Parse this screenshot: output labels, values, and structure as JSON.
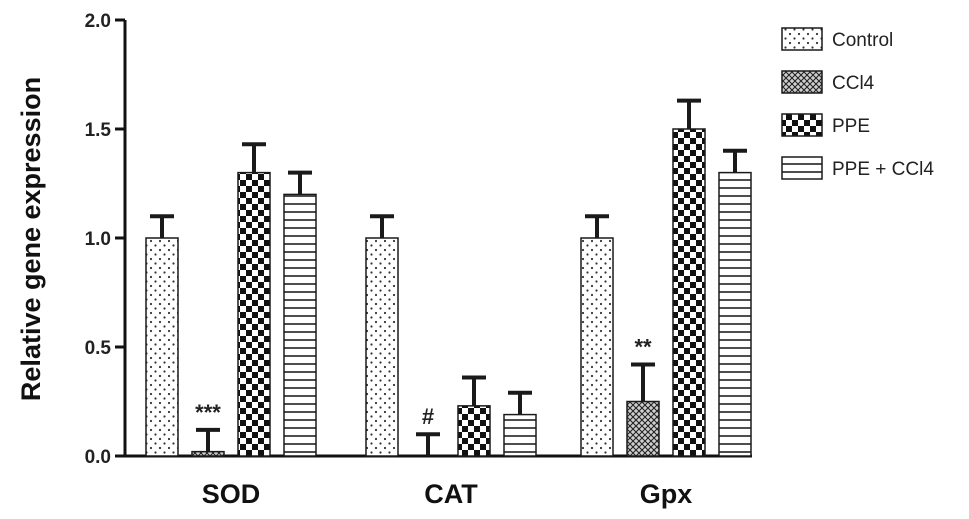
{
  "chart_data": {
    "type": "bar",
    "title": "",
    "xlabel": "",
    "ylabel": "Relative gene expression",
    "ylim": [
      0,
      2.0
    ],
    "yticks": [
      "0.0",
      "0.5",
      "1.0",
      "1.5",
      "2.0"
    ],
    "categories": [
      "SOD",
      "CAT",
      "Gpx"
    ],
    "series": [
      {
        "name": "Control",
        "values": [
          1.0,
          1.0,
          1.0
        ],
        "errors": [
          0.1,
          0.1,
          0.1
        ],
        "pattern": "dots"
      },
      {
        "name": "CCl4",
        "values": [
          0.02,
          0.0,
          0.25
        ],
        "errors": [
          0.1,
          0.1,
          0.17
        ],
        "pattern": "crosshatch"
      },
      {
        "name": "PPE",
        "values": [
          1.3,
          0.23,
          1.5
        ],
        "errors": [
          0.13,
          0.13,
          0.13
        ],
        "pattern": "checker"
      },
      {
        "name": "PPE + CCl4",
        "values": [
          1.2,
          0.19,
          1.3
        ],
        "errors": [
          0.1,
          0.1,
          0.1
        ],
        "pattern": "hlines"
      }
    ],
    "legend": [
      "Control",
      "CCl4",
      "PPE",
      "PPE + CCl4"
    ],
    "legend_position": "top-right",
    "grid": false,
    "annotations": [
      {
        "text": "***",
        "category": "SOD",
        "series": "CCl4"
      },
      {
        "text": "#",
        "category": "CAT",
        "series": "CCl4"
      },
      {
        "text": "**",
        "category": "Gpx",
        "series": "CCl4"
      }
    ]
  }
}
